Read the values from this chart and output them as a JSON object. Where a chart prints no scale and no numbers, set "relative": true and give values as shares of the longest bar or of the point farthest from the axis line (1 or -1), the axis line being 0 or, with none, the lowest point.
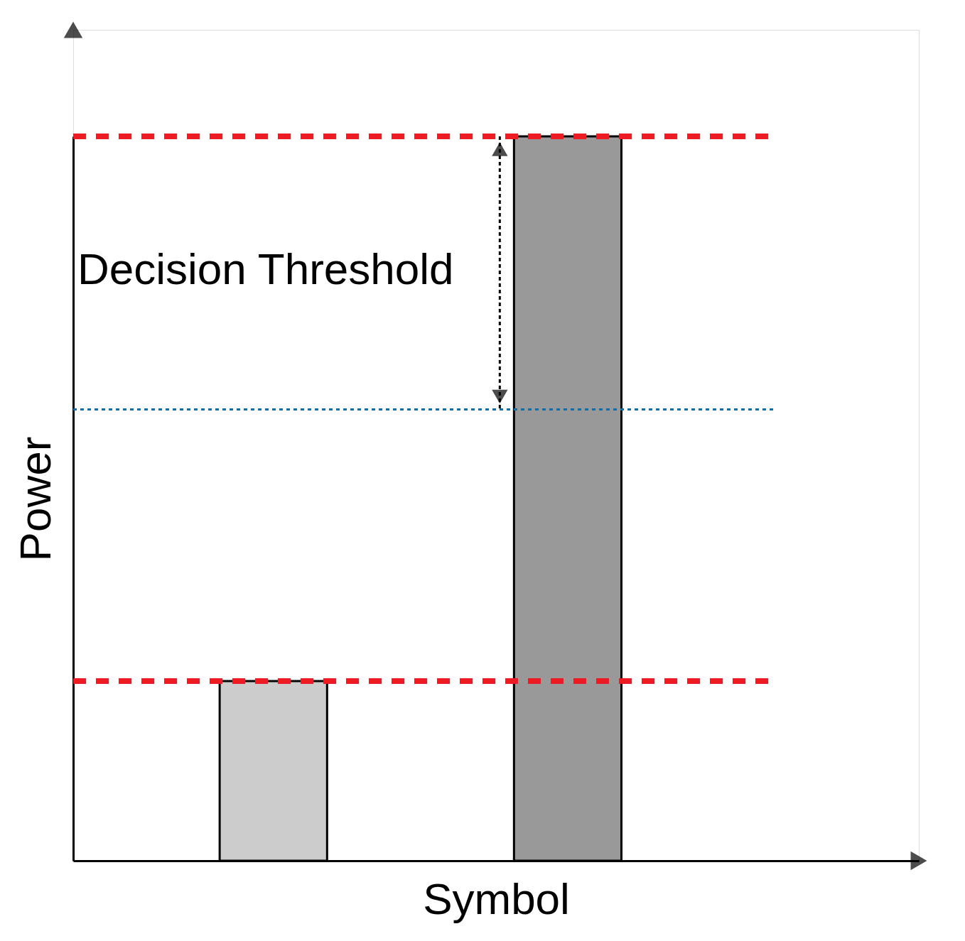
{
  "chart_data": {
    "type": "bar",
    "relative": true,
    "xlabel": "Symbol",
    "ylabel": "Power",
    "categories": [
      null,
      null
    ],
    "values": [
      0.248,
      1
    ],
    "colors": [
      "#cccccc",
      "#999999"
    ],
    "tick_labels": false,
    "grid": false,
    "ref_lines": [
      {
        "axis": "y",
        "value": 1,
        "color": "#ed1c24",
        "line_style": "dashed"
      },
      {
        "axis": "y",
        "value": 0.248,
        "color": "#ed1c24",
        "line_style": "dashed"
      },
      {
        "axis": "y",
        "value": 0.623,
        "color": "#0072bc",
        "line_style": "dotted"
      }
    ],
    "annotations": [
      "Decision Threshold"
    ]
  }
}
